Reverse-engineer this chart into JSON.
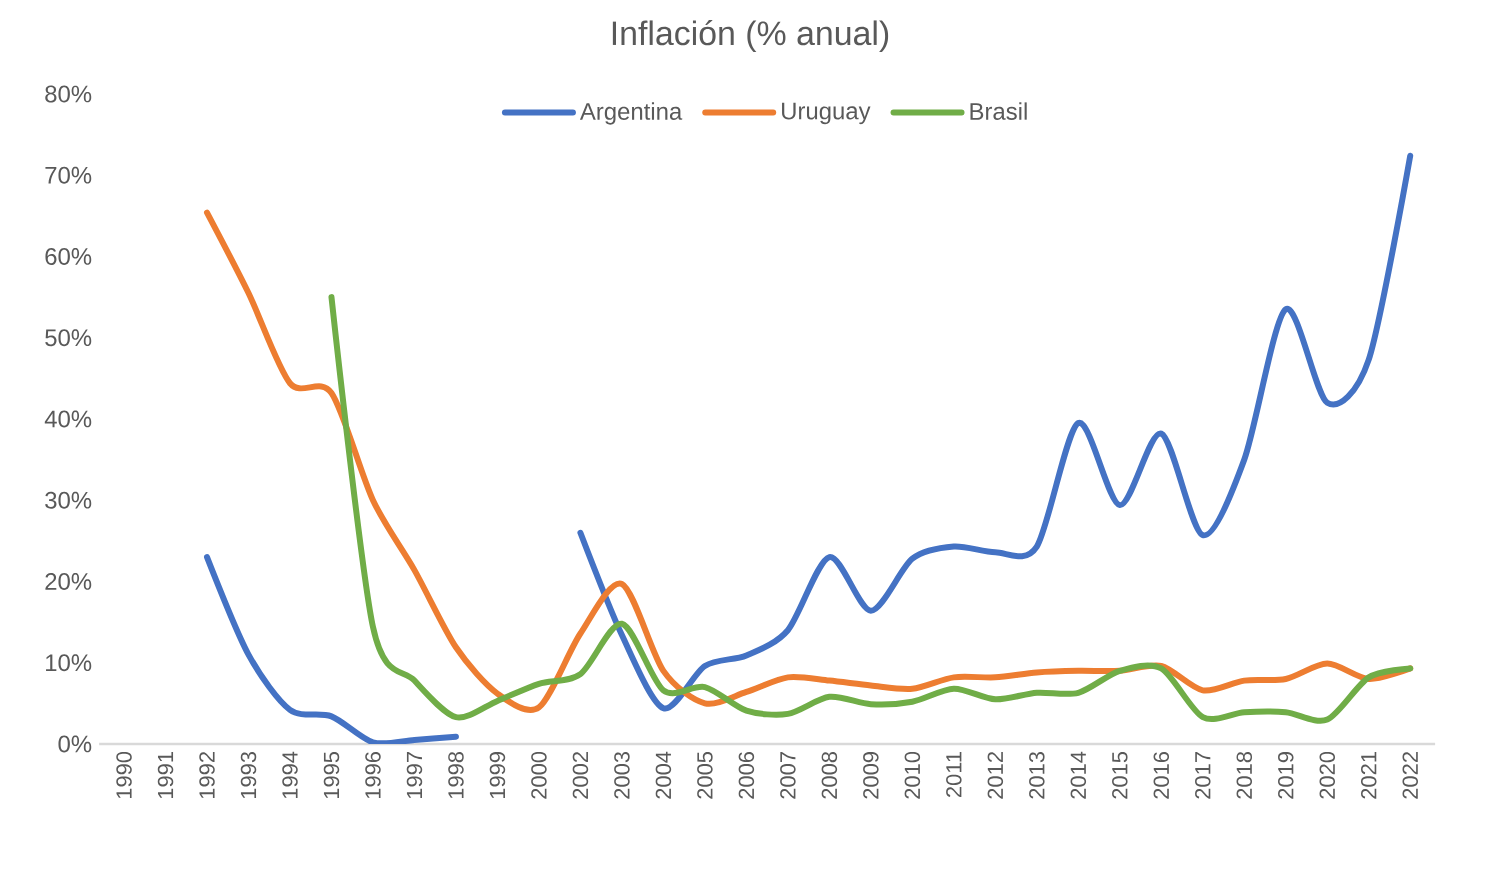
{
  "chart_data": {
    "type": "line",
    "title": "Inflación (% anual)",
    "categories": [
      "1990",
      "1991",
      "1992",
      "1993",
      "1994",
      "1995",
      "1996",
      "1997",
      "1998",
      "1999",
      "2000",
      "2002",
      "2003",
      "2004",
      "2005",
      "2006",
      "2007",
      "2008",
      "2009",
      "2010",
      "2011",
      "2012",
      "2013",
      "2014",
      "2015",
      "2016",
      "2017",
      "2018",
      "2019",
      "2020",
      "2021",
      "2022"
    ],
    "series": [
      {
        "name": "Argentina",
        "color": "#4472c4",
        "values": [
          null,
          null,
          23,
          11,
          4.2,
          3.4,
          0.2,
          0.5,
          0.9,
          null,
          null,
          26,
          13.4,
          4.4,
          9.6,
          10.9,
          14,
          23,
          16.4,
          22.8,
          24.3,
          23.6,
          24.3,
          39.5,
          29.4,
          38.2,
          25.7,
          35,
          53.5,
          42,
          47.3,
          72.4
        ]
      },
      {
        "name": "Uruguay",
        "color": "#ed7d31",
        "values": [
          null,
          null,
          65.4,
          55.5,
          44.4,
          43.2,
          30,
          21.4,
          11.9,
          6.2,
          4.5,
          13.6,
          19.7,
          9,
          5,
          6.4,
          8.2,
          7.8,
          7.2,
          6.8,
          8.2,
          8.2,
          8.8,
          9,
          9,
          9.6,
          6.6,
          7.8,
          8,
          9.9,
          8,
          9.3
        ]
      },
      {
        "name": "Brasil",
        "color": "#70ad47",
        "values": [
          null,
          null,
          null,
          null,
          null,
          55,
          14.4,
          7.8,
          3.3,
          5.3,
          7.4,
          8.6,
          14.8,
          6.6,
          7,
          4.1,
          3.7,
          5.8,
          4.9,
          5.2,
          6.8,
          5.5,
          6.3,
          6.3,
          9,
          9.3,
          3.3,
          3.9,
          3.9,
          3,
          8.2,
          9.3
        ]
      }
    ],
    "ylim": [
      0,
      80
    ],
    "yticks": [
      {
        "value": 0,
        "label": "0%"
      },
      {
        "value": 10,
        "label": "10%"
      },
      {
        "value": 20,
        "label": "20%"
      },
      {
        "value": 30,
        "label": "30%"
      },
      {
        "value": 40,
        "label": "40%"
      },
      {
        "value": 50,
        "label": "50%"
      },
      {
        "value": 60,
        "label": "60%"
      },
      {
        "value": 70,
        "label": "70%"
      },
      {
        "value": 80,
        "label": "80%"
      }
    ],
    "grid": false,
    "legend": "top",
    "marker": "none",
    "line_style": "solid"
  }
}
